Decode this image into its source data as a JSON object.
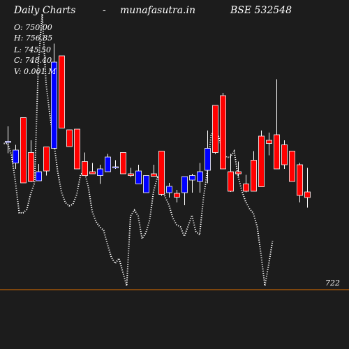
{
  "header": {
    "left": "Daily Charts",
    "dash": "-",
    "site": "munafasutra.in",
    "symbol": "BSE 532548"
  },
  "ohlc": {
    "open": "O: 750.00",
    "high": "H: 756.85",
    "low": "L: 745.50",
    "close": "C: 748.40",
    "volume": "V: 0.001 M"
  },
  "colors": {
    "background": "#000000",
    "panel": "#1c1c1c",
    "up": "#0000ff",
    "down": "#ff0000",
    "wick": "#ffffff",
    "level_line": "#e07000",
    "dotted_line": "#ffffff"
  },
  "chart_data": {
    "type": "candlestick",
    "y_range": [
      705,
      805
    ],
    "level": {
      "value": 722,
      "label": "722"
    },
    "candles": [
      {
        "o": 764.5,
        "h": 768.8,
        "l": 761.1,
        "c": 764.5
      },
      {
        "o": 758.3,
        "h": 763.5,
        "l": 756.6,
        "c": 762.0
      },
      {
        "o": 771.3,
        "h": 771.3,
        "l": 752.6,
        "c": 752.6
      },
      {
        "o": 761.3,
        "h": 764.8,
        "l": 752.8,
        "c": 753.0
      },
      {
        "o": 753.2,
        "h": 758.0,
        "l": 753.2,
        "c": 755.8
      },
      {
        "o": 762.9,
        "h": 762.9,
        "l": 754.7,
        "c": 756.0
      },
      {
        "o": 762.5,
        "h": 792.5,
        "l": 762.5,
        "c": 787.2
      },
      {
        "o": 789.0,
        "h": 789.0,
        "l": 768.3,
        "c": 768.3
      },
      {
        "o": 767.8,
        "h": 767.8,
        "l": 763.0,
        "c": 763.0
      },
      {
        "o": 768.0,
        "h": 768.0,
        "l": 756.6,
        "c": 756.6
      },
      {
        "o": 758.7,
        "h": 761.3,
        "l": 754.7,
        "c": 754.7
      },
      {
        "o": 755.8,
        "h": 758.3,
        "l": 755.2,
        "c": 755.2
      },
      {
        "o": 754.7,
        "h": 757.8,
        "l": 752.3,
        "c": 756.6
      },
      {
        "o": 755.8,
        "h": 760.9,
        "l": 755.8,
        "c": 760.0
      },
      {
        "o": 757.0,
        "h": 759.1,
        "l": 756.6,
        "c": 757.2
      },
      {
        "o": 761.3,
        "h": 761.3,
        "l": 755.2,
        "c": 755.2
      },
      {
        "o": 755.2,
        "h": 756.9,
        "l": 754.3,
        "c": 754.7
      },
      {
        "o": 752.3,
        "h": 757.8,
        "l": 752.3,
        "c": 756.0
      },
      {
        "o": 749.8,
        "h": 754.7,
        "l": 749.8,
        "c": 754.7
      },
      {
        "o": 755.2,
        "h": 757.8,
        "l": 754.5,
        "c": 754.5
      },
      {
        "o": 761.7,
        "h": 761.7,
        "l": 748.9,
        "c": 749.3
      },
      {
        "o": 749.8,
        "h": 752.6,
        "l": 748.4,
        "c": 751.6
      },
      {
        "o": 749.6,
        "h": 750.6,
        "l": 747.0,
        "c": 748.5
      },
      {
        "o": 749.8,
        "h": 754.4,
        "l": 746.2,
        "c": 754.4
      },
      {
        "o": 753.4,
        "h": 755.2,
        "l": 749.8,
        "c": 754.7
      },
      {
        "o": 753.0,
        "h": 758.3,
        "l": 749.8,
        "c": 755.8
      },
      {
        "o": 756.2,
        "h": 767.6,
        "l": 752.5,
        "c": 762.5
      },
      {
        "o": 774.8,
        "h": 774.8,
        "l": 760.9,
        "c": 761.3
      },
      {
        "o": 777.6,
        "h": 778.4,
        "l": 756.6,
        "c": 756.6
      },
      {
        "o": 755.8,
        "h": 760.9,
        "l": 750.0,
        "c": 750.2
      },
      {
        "o": 755.8,
        "h": 758.7,
        "l": 754.5,
        "c": 755.2
      },
      {
        "o": 752.3,
        "h": 754.9,
        "l": 749.9,
        "c": 750.2
      },
      {
        "o": 759.1,
        "h": 761.7,
        "l": 750.2,
        "c": 750.2
      },
      {
        "o": 766.0,
        "h": 767.6,
        "l": 751.5,
        "c": 751.5
      },
      {
        "o": 764.8,
        "h": 767.0,
        "l": 760.5,
        "c": 763.9
      },
      {
        "o": 766.4,
        "h": 782.3,
        "l": 756.6,
        "c": 756.6
      },
      {
        "o": 763.5,
        "h": 764.8,
        "l": 756.6,
        "c": 757.8
      },
      {
        "o": 761.7,
        "h": 761.7,
        "l": 753.0,
        "c": 753.0
      },
      {
        "o": 757.8,
        "h": 758.3,
        "l": 747.0,
        "c": 749.0
      },
      {
        "o": 750.0,
        "h": 756.9,
        "l": 745.5,
        "c": 748.4
      }
    ],
    "dotted_line_values": [
      763.9,
      763.9,
      760.5,
      753.0,
      744.0,
      744.0,
      745.0,
      749.5,
      752.6,
      787.0,
      801.0,
      781.0,
      772.0,
      764.5,
      756.0,
      750.0,
      747.0,
      746.0,
      746.5,
      749.3,
      755.0,
      755.8,
      751.5,
      744.5,
      741.5,
      740.0,
      739.0,
      735.0,
      731.3,
      729.5,
      731.0,
      727.0,
      723.1,
      743.1,
      744.8,
      743.1,
      736.6,
      738.3,
      742.0,
      750.2,
      754.2,
      752.8,
      748.6,
      746.3,
      742.6,
      740.6,
      740.0,
      737.3,
      740.2,
      743.3,
      738.7,
      737.7,
      748.3,
      755.8,
      766.4,
      767.6,
      765.8,
      761.3,
      759.9,
      760.0,
      761.7,
      754.6,
      750.3,
      747.2,
      745.2,
      743.9,
      740.0,
      732.0,
      723.1,
      729.3,
      736.0
    ]
  }
}
